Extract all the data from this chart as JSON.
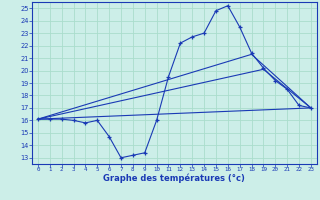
{
  "title": "",
  "xlabel": "Graphe des températures (°c)",
  "ylabel": "",
  "bg_color": "#cceee8",
  "grid_color": "#aaddcc",
  "line_color": "#1a3ab5",
  "xlim": [
    -0.5,
    23.5
  ],
  "ylim": [
    12.5,
    25.5
  ],
  "yticks": [
    13,
    14,
    15,
    16,
    17,
    18,
    19,
    20,
    21,
    22,
    23,
    24,
    25
  ],
  "xticks": [
    0,
    1,
    2,
    3,
    4,
    5,
    6,
    7,
    8,
    9,
    10,
    11,
    12,
    13,
    14,
    15,
    16,
    17,
    18,
    19,
    20,
    21,
    22,
    23
  ],
  "line1_x": [
    0,
    1,
    2,
    3,
    4,
    5,
    6,
    7,
    8,
    9,
    10,
    11,
    12,
    13,
    14,
    15,
    16,
    17,
    18,
    19,
    20,
    21,
    22,
    23
  ],
  "line1_y": [
    16.1,
    16.1,
    16.1,
    16.0,
    15.8,
    16.0,
    14.7,
    13.0,
    13.2,
    13.4,
    16.0,
    19.5,
    22.2,
    22.7,
    23.0,
    24.8,
    25.2,
    23.5,
    21.4,
    20.2,
    19.2,
    18.5,
    17.2,
    17.0
  ],
  "line2_x": [
    0,
    23
  ],
  "line2_y": [
    16.1,
    17.0
  ],
  "line3_x": [
    0,
    19,
    23
  ],
  "line3_y": [
    16.1,
    20.1,
    17.0
  ],
  "line4_x": [
    0,
    18,
    23
  ],
  "line4_y": [
    16.1,
    21.3,
    17.0
  ]
}
